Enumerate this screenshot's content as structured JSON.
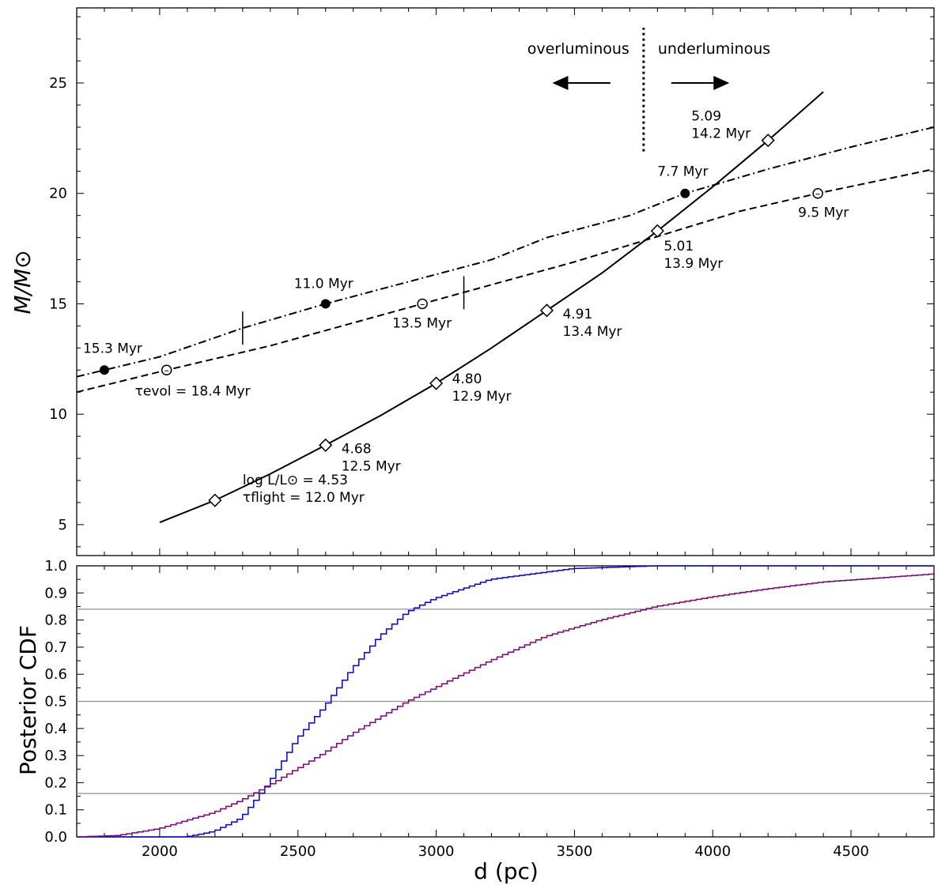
{
  "chart_data": [
    {
      "type": "line",
      "panel": "top",
      "ylabel": "M/M⊙",
      "xlim": [
        1700,
        4800
      ],
      "ylim": [
        3.6,
        28.4
      ],
      "xticks": [
        2000,
        2500,
        3000,
        3500,
        4000,
        4500
      ],
      "yticks": [
        5,
        10,
        15,
        20,
        25
      ],
      "series": [
        {
          "name": "flight-time track (solid)",
          "style": "solid",
          "points": [
            [
              2000,
              5.1
            ],
            [
              2200,
              6.1
            ],
            [
              2400,
              7.3
            ],
            [
              2600,
              8.6
            ],
            [
              2800,
              9.95
            ],
            [
              3000,
              11.4
            ],
            [
              3200,
              13.0
            ],
            [
              3400,
              14.7
            ],
            [
              3600,
              16.4
            ],
            [
              3800,
              18.3
            ],
            [
              4000,
              20.3
            ],
            [
              4200,
              22.4
            ],
            [
              4400,
              24.6
            ]
          ],
          "markers": [
            {
              "x": 2200,
              "y": 6.1,
              "symbol": "diamond",
              "labels": [
                "log L/L⊙ = 4.53",
                "τflight = 12.0 Myr"
              ]
            },
            {
              "x": 2600,
              "y": 8.6,
              "symbol": "diamond",
              "labels": [
                "4.68",
                "12.5 Myr"
              ]
            },
            {
              "x": 3000,
              "y": 11.4,
              "symbol": "diamond",
              "labels": [
                "4.80",
                "12.9 Myr"
              ]
            },
            {
              "x": 3400,
              "y": 14.7,
              "symbol": "diamond",
              "labels": [
                "4.91",
                "13.4 Myr"
              ]
            },
            {
              "x": 3800,
              "y": 18.3,
              "symbol": "diamond",
              "labels": [
                "5.01",
                "13.9 Myr"
              ]
            },
            {
              "x": 4200,
              "y": 22.4,
              "symbol": "diamond",
              "labels": [
                "5.09",
                "14.2 Myr"
              ]
            }
          ]
        },
        {
          "name": "dash-dot track",
          "style": "dashdot",
          "points": [
            [
              1700,
              11.7
            ],
            [
              2000,
              12.6
            ],
            [
              2300,
              13.9
            ],
            [
              2600,
              15.0
            ],
            [
              2900,
              16.0
            ],
            [
              3200,
              17.0
            ],
            [
              3400,
              18.0
            ],
            [
              3700,
              19.0
            ],
            [
              3900,
              20.0
            ],
            [
              4200,
              21.1
            ],
            [
              4500,
              22.1
            ],
            [
              4800,
              23.0
            ]
          ],
          "markers": [
            {
              "x": 1800,
              "y": 12.0,
              "symbol": "filled-circle",
              "labels": [
                "15.3 Myr"
              ]
            },
            {
              "x": 2600,
              "y": 15.0,
              "symbol": "filled-circle",
              "labels": [
                "11.0 Myr"
              ]
            },
            {
              "x": 3900,
              "y": 20.0,
              "symbol": "filled-circle",
              "labels": [
                "7.7 Myr"
              ]
            }
          ]
        },
        {
          "name": "dashed track",
          "style": "dashed",
          "points": [
            [
              1700,
              11.0
            ],
            [
              2025,
              12.0
            ],
            [
              2400,
              13.1
            ],
            [
              2950,
              15.0
            ],
            [
              3500,
              16.9
            ],
            [
              4100,
              19.2
            ],
            [
              4380,
              20.0
            ],
            [
              4800,
              21.1
            ]
          ],
          "markers": [
            {
              "x": 2025,
              "y": 12.0,
              "symbol": "open-circle",
              "labels": [
                "τevol = 18.4 Myr"
              ]
            },
            {
              "x": 2950,
              "y": 15.0,
              "symbol": "open-circle",
              "labels": [
                "13.5 Myr"
              ]
            },
            {
              "x": 4380,
              "y": 20.0,
              "symbol": "open-circle",
              "labels": [
                "9.5 Myr"
              ]
            }
          ]
        }
      ],
      "error_ticks": [
        {
          "x": 2300,
          "y": 13.9,
          "y_half_range": 0.75
        },
        {
          "x": 3100,
          "y": 15.5,
          "y_half_range": 0.75
        }
      ],
      "divider": {
        "x": 3750,
        "y_range": [
          21.9,
          27.5
        ],
        "style": "dotted"
      },
      "annotations": {
        "left_label": "overluminous",
        "right_label": "underluminous",
        "left_arrow": {
          "x_from": 3630,
          "x_to": 3420,
          "y": 25.0
        },
        "right_arrow": {
          "x_from": 3850,
          "x_to": 4060,
          "y": 25.0
        }
      }
    },
    {
      "type": "line",
      "panel": "bottom",
      "xlabel": "d (pc)",
      "ylabel": "Posterior CDF",
      "xlim": [
        1700,
        4800
      ],
      "ylim": [
        0.0,
        1.0
      ],
      "xticks": [
        2000,
        2500,
        3000,
        3500,
        4000,
        4500
      ],
      "yticks": [
        0.0,
        0.1,
        0.2,
        0.3,
        0.4,
        0.5,
        0.6,
        0.7,
        0.8,
        0.9,
        1.0
      ],
      "hlines": [
        0.16,
        0.5,
        0.84
      ],
      "series": [
        {
          "name": "blue CDF",
          "color": "#0000ee",
          "style": "step",
          "points": [
            [
              1700,
              0.0
            ],
            [
              2100,
              0.0
            ],
            [
              2200,
              0.02
            ],
            [
              2300,
              0.07
            ],
            [
              2400,
              0.2
            ],
            [
              2500,
              0.36
            ],
            [
              2600,
              0.48
            ],
            [
              2700,
              0.62
            ],
            [
              2800,
              0.74
            ],
            [
              2900,
              0.83
            ],
            [
              3000,
              0.88
            ],
            [
              3200,
              0.95
            ],
            [
              3500,
              0.99
            ],
            [
              3800,
              1.0
            ],
            [
              4800,
              1.0
            ]
          ]
        },
        {
          "name": "purple CDF",
          "color": "#800080",
          "style": "step",
          "points": [
            [
              1700,
              0.0
            ],
            [
              1850,
              0.005
            ],
            [
              2000,
              0.03
            ],
            [
              2100,
              0.06
            ],
            [
              2200,
              0.09
            ],
            [
              2300,
              0.135
            ],
            [
              2400,
              0.19
            ],
            [
              2500,
              0.25
            ],
            [
              2600,
              0.31
            ],
            [
              2700,
              0.38
            ],
            [
              2800,
              0.44
            ],
            [
              2900,
              0.5
            ],
            [
              3000,
              0.55
            ],
            [
              3200,
              0.65
            ],
            [
              3400,
              0.74
            ],
            [
              3600,
              0.8
            ],
            [
              3800,
              0.85
            ],
            [
              4000,
              0.885
            ],
            [
              4200,
              0.915
            ],
            [
              4400,
              0.94
            ],
            [
              4600,
              0.955
            ],
            [
              4800,
              0.97
            ]
          ]
        }
      ]
    }
  ]
}
